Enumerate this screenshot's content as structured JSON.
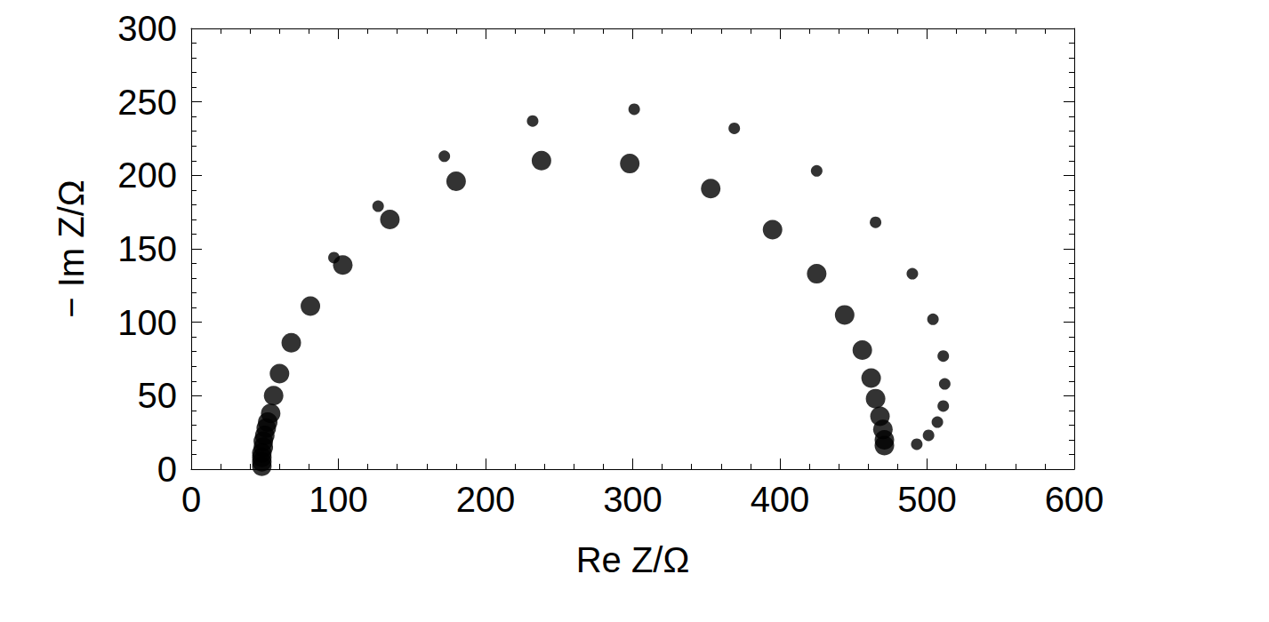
{
  "chart_data": {
    "type": "scatter",
    "x_label": "Re Z/Ω",
    "y_label": "− Im Z/Ω",
    "xlim": [
      0,
      600
    ],
    "xticks": [
      0,
      100,
      200,
      300,
      400,
      500,
      600
    ],
    "ylim": [
      0,
      300
    ],
    "yticks": [
      0,
      50,
      100,
      150,
      200,
      250,
      300
    ],
    "grid": false,
    "series": [
      {
        "color": "#000000",
        "marker": "circle",
        "x": [
          48,
          48,
          48,
          48,
          49,
          49,
          50,
          51,
          52,
          54,
          56,
          60,
          68,
          81,
          103,
          135,
          180,
          238,
          298,
          353,
          395,
          425,
          444,
          456,
          462,
          465,
          468,
          470,
          471,
          471
        ],
        "values": [
          2,
          5,
          8,
          11,
          15,
          19,
          23,
          28,
          32,
          38,
          50,
          65,
          86,
          111,
          139,
          170,
          196,
          210,
          208,
          191,
          163,
          133,
          105,
          81,
          62,
          48,
          36,
          27,
          20,
          16
        ]
      },
      {
        "color": "#000000",
        "marker": "circle",
        "x": [
          97,
          127,
          172,
          232,
          301,
          369,
          425,
          465,
          490,
          504,
          511,
          512,
          511,
          507,
          501,
          493
        ],
        "values": [
          144,
          179,
          213,
          237,
          245,
          232,
          203,
          168,
          133,
          102,
          77,
          58,
          43,
          32,
          23,
          17
        ]
      }
    ]
  }
}
